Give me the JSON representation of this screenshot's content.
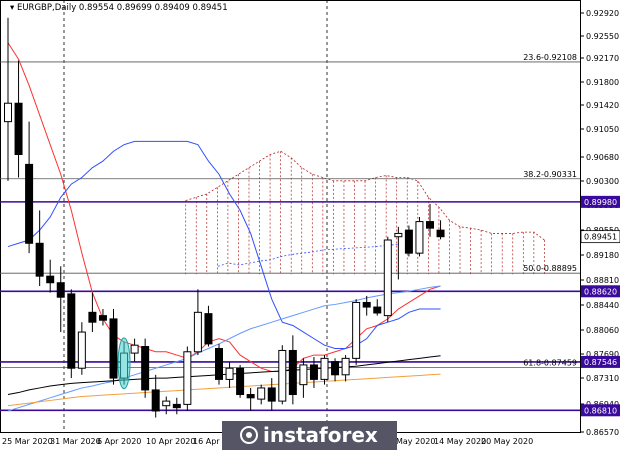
{
  "chart_data": {
    "type": "candlestick",
    "title": "EURGBP,Daily",
    "ohlc_header": "0.89554 0.89699 0.89409 0.89451",
    "y_axis": {
      "ylim": [
        0.8648,
        0.9305
      ],
      "ticks": [
        "0.92920",
        "0.92550",
        "0.92170",
        "0.91800",
        "0.91420",
        "0.91050",
        "0.90680",
        "0.90300",
        "0.89930",
        "0.89550",
        "0.89180",
        "0.88810",
        "0.88440",
        "0.88060",
        "0.87690",
        "0.87310",
        "0.86940",
        "0.86570"
      ]
    },
    "x_axis": {
      "ticks": [
        "25 Mar 2020",
        "31 Mar 2020",
        "6 Apr 2020",
        "10 Apr 2020",
        "16 Apr 2020",
        "",
        "May 2020",
        "14 May 2020",
        "20 May 2020"
      ]
    },
    "candles": [
      {
        "o": 0.912,
        "h": 0.9278,
        "l": 0.903,
        "c": 0.9148
      },
      {
        "o": 0.9148,
        "h": 0.9213,
        "l": 0.9035,
        "c": 0.907
      },
      {
        "o": 0.9055,
        "h": 0.912,
        "l": 0.892,
        "c": 0.8935
      },
      {
        "o": 0.8935,
        "h": 0.8985,
        "l": 0.887,
        "c": 0.8885
      },
      {
        "o": 0.8885,
        "h": 0.891,
        "l": 0.886,
        "c": 0.8875
      },
      {
        "o": 0.8875,
        "h": 0.89,
        "l": 0.88,
        "c": 0.8853
      },
      {
        "o": 0.8858,
        "h": 0.8865,
        "l": 0.873,
        "c": 0.8745
      },
      {
        "o": 0.8745,
        "h": 0.8815,
        "l": 0.8735,
        "c": 0.88
      },
      {
        "o": 0.883,
        "h": 0.886,
        "l": 0.88,
        "c": 0.8815
      },
      {
        "o": 0.8825,
        "h": 0.8835,
        "l": 0.881,
        "c": 0.8818
      },
      {
        "o": 0.882,
        "h": 0.8835,
        "l": 0.872,
        "c": 0.873
      },
      {
        "o": 0.873,
        "h": 0.8785,
        "l": 0.872,
        "c": 0.8768
      },
      {
        "o": 0.8768,
        "h": 0.879,
        "l": 0.8755,
        "c": 0.878
      },
      {
        "o": 0.8778,
        "h": 0.879,
        "l": 0.87,
        "c": 0.8712
      },
      {
        "o": 0.8712,
        "h": 0.8735,
        "l": 0.867,
        "c": 0.868
      },
      {
        "o": 0.8688,
        "h": 0.8702,
        "l": 0.8675,
        "c": 0.8695
      },
      {
        "o": 0.869,
        "h": 0.87,
        "l": 0.8675,
        "c": 0.8685
      },
      {
        "o": 0.869,
        "h": 0.8778,
        "l": 0.868,
        "c": 0.877
      },
      {
        "o": 0.877,
        "h": 0.8865,
        "l": 0.8765,
        "c": 0.883
      },
      {
        "o": 0.8828,
        "h": 0.884,
        "l": 0.8778,
        "c": 0.8782
      },
      {
        "o": 0.8775,
        "h": 0.8782,
        "l": 0.872,
        "c": 0.8728
      },
      {
        "o": 0.8728,
        "h": 0.8755,
        "l": 0.8715,
        "c": 0.8745
      },
      {
        "o": 0.8745,
        "h": 0.875,
        "l": 0.87,
        "c": 0.8705
      },
      {
        "o": 0.8705,
        "h": 0.8715,
        "l": 0.868,
        "c": 0.87
      },
      {
        "o": 0.8698,
        "h": 0.872,
        "l": 0.869,
        "c": 0.8715
      },
      {
        "o": 0.8715,
        "h": 0.873,
        "l": 0.868,
        "c": 0.8695
      },
      {
        "o": 0.8695,
        "h": 0.878,
        "l": 0.869,
        "c": 0.8772
      },
      {
        "o": 0.8772,
        "h": 0.8795,
        "l": 0.869,
        "c": 0.8705
      },
      {
        "o": 0.872,
        "h": 0.876,
        "l": 0.87,
        "c": 0.875
      },
      {
        "o": 0.875,
        "h": 0.8762,
        "l": 0.8715,
        "c": 0.8728
      },
      {
        "o": 0.8728,
        "h": 0.8765,
        "l": 0.872,
        "c": 0.876
      },
      {
        "o": 0.8755,
        "h": 0.876,
        "l": 0.8725,
        "c": 0.8735
      },
      {
        "o": 0.8735,
        "h": 0.8765,
        "l": 0.8725,
        "c": 0.876
      },
      {
        "o": 0.876,
        "h": 0.885,
        "l": 0.875,
        "c": 0.8845
      },
      {
        "o": 0.8845,
        "h": 0.8855,
        "l": 0.8825,
        "c": 0.8838
      },
      {
        "o": 0.8838,
        "h": 0.885,
        "l": 0.8825,
        "c": 0.8829
      },
      {
        "o": 0.8825,
        "h": 0.8945,
        "l": 0.8815,
        "c": 0.894
      },
      {
        "o": 0.8945,
        "h": 0.896,
        "l": 0.888,
        "c": 0.895
      },
      {
        "o": 0.8955,
        "h": 0.8962,
        "l": 0.8915,
        "c": 0.892
      },
      {
        "o": 0.892,
        "h": 0.8975,
        "l": 0.8915,
        "c": 0.8968
      },
      {
        "o": 0.8968,
        "h": 0.8995,
        "l": 0.8945,
        "c": 0.8958
      },
      {
        "o": 0.8955,
        "h": 0.897,
        "l": 0.8941,
        "c": 0.8945
      }
    ],
    "highlighted_candle_index": 11,
    "indicators": [
      {
        "name": "tenkan",
        "color": "#ff3030",
        "values": [
          0.924,
          0.9215,
          0.9175,
          0.913,
          0.9085,
          0.904,
          0.8985,
          0.892,
          0.886,
          0.882,
          0.8795,
          0.8785,
          0.878,
          0.8775,
          0.877,
          0.877,
          0.8765,
          0.876,
          0.877,
          0.8785,
          0.879,
          0.8785,
          0.8765,
          0.8755,
          0.8745,
          0.874,
          0.874,
          0.8745,
          0.876,
          0.8765,
          0.8765,
          0.877,
          0.8775,
          0.879,
          0.8805,
          0.881,
          0.882,
          0.8835,
          0.8845,
          0.8855,
          0.8865,
          0.887
        ]
      },
      {
        "name": "kijun",
        "color": "#3050ff",
        "values": [
          0.893,
          0.8935,
          0.894,
          0.8955,
          0.8975,
          0.9005,
          0.9025,
          0.9035,
          0.905,
          0.906,
          0.9075,
          0.9085,
          0.909,
          0.909,
          0.909,
          0.909,
          0.909,
          0.909,
          0.9085,
          0.906,
          0.904,
          0.901,
          0.8985,
          0.895,
          0.89,
          0.885,
          0.8815,
          0.881,
          0.88,
          0.879,
          0.878,
          0.8775,
          0.8775,
          0.878,
          0.879,
          0.881,
          0.8815,
          0.882,
          0.883,
          0.8835,
          0.8835,
          0.8835
        ]
      },
      {
        "name": "sma_slow",
        "color": "#6699ff",
        "values": [
          0.868,
          0.8685,
          0.869,
          0.8695,
          0.87,
          0.8705,
          0.871,
          0.8715,
          0.8718,
          0.8722,
          0.8725,
          0.873,
          0.8735,
          0.874,
          0.8745,
          0.875,
          0.8755,
          0.876,
          0.8768,
          0.8775,
          0.8782,
          0.879,
          0.8798,
          0.8805,
          0.881,
          0.8815,
          0.882,
          0.8825,
          0.883,
          0.8835,
          0.884,
          0.8842,
          0.8845,
          0.8848,
          0.8852,
          0.8855,
          0.8858,
          0.886,
          0.8862,
          0.8865,
          0.8868,
          0.887
        ]
      },
      {
        "name": "ma_black",
        "color": "#000000",
        "values": [
          0.8705,
          0.8708,
          0.8712,
          0.8715,
          0.8718,
          0.872,
          0.8722,
          0.8723,
          0.8724,
          0.8725,
          0.8726,
          0.8727,
          0.8728,
          0.8729,
          0.873,
          0.873,
          0.8731,
          0.8732,
          0.8733,
          0.8734,
          0.8735,
          0.8736,
          0.8737,
          0.8738,
          0.8739,
          0.874,
          0.8741,
          0.8742,
          0.8743,
          0.8744,
          0.8745,
          0.8746,
          0.8747,
          0.8748,
          0.875,
          0.8752,
          0.8754,
          0.8756,
          0.8758,
          0.876,
          0.8762,
          0.8764
        ]
      },
      {
        "name": "ma_orange",
        "color": "#f0a040",
        "values": [
          0.8688,
          0.869,
          0.8692,
          0.8694,
          0.8696,
          0.8698,
          0.87,
          0.8702,
          0.8703,
          0.8704,
          0.8705,
          0.8706,
          0.8707,
          0.8708,
          0.8709,
          0.871,
          0.8711,
          0.8712,
          0.8713,
          0.8714,
          0.8715,
          0.8716,
          0.8717,
          0.8718,
          0.8719,
          0.872,
          0.8721,
          0.8722,
          0.8723,
          0.8724,
          0.8725,
          0.8726,
          0.8727,
          0.8728,
          0.8729,
          0.873,
          0.8731,
          0.8732,
          0.8733,
          0.8734,
          0.8735,
          0.8736
        ]
      }
    ],
    "cloud_upper": [
      0.9,
      0.9005,
      0.901,
      0.902,
      0.903,
      0.904,
      0.905,
      0.906,
      0.907,
      0.9075,
      0.9065,
      0.905,
      0.904,
      0.9035,
      0.903,
      0.903,
      0.903,
      0.903,
      0.9035,
      0.9038,
      0.9035,
      0.9035,
      0.903,
      0.9005,
      0.899,
      0.897,
      0.896,
      0.8958,
      0.8955,
      0.895,
      0.895,
      0.895,
      0.8952,
      0.8952,
      0.894
    ],
    "cloud_lower": [
      0.8888,
      0.8888,
      0.8888,
      0.8888,
      0.8888,
      0.8888,
      0.8888,
      0.8888,
      0.8888,
      0.8888,
      0.8888,
      0.8888,
      0.8888,
      0.8888,
      0.8888,
      0.8888,
      0.8888,
      0.8888,
      0.8888,
      0.8888,
      0.8888,
      0.8888,
      0.8888,
      0.8888,
      0.8888,
      0.8888,
      0.8888,
      0.8888,
      0.8888,
      0.8888,
      0.8888,
      0.8888,
      0.8888,
      0.8888,
      0.8888
    ],
    "cloud_start_index": 14,
    "chikou": {
      "color": "#3050ff",
      "values": [
        0.893,
        0.8935,
        0.8932,
        0.8935,
        0.8938,
        0.894,
        0.8945,
        0.8948,
        0.895,
        0.8952,
        0.8955,
        0.8956,
        0.8957,
        0.8958,
        0.8959,
        0.896,
        0.8962,
        0.8963
      ]
    },
    "horizontal_levels": [
      {
        "price": 0.8998,
        "label": "0.89980",
        "color": "#3a0a9c",
        "box": true
      },
      {
        "price": 0.8862,
        "label": "0.88620",
        "color": "#3a0a9c",
        "box": true
      },
      {
        "price": 0.87546,
        "label": "0.87546",
        "color": "#3a0a9c",
        "box": true
      },
      {
        "price": 0.8681,
        "label": "0.86810",
        "color": "#3a0a9c",
        "box": true
      },
      {
        "price": 0.92108,
        "label": "23.6-0.92108",
        "color": "#555555",
        "box": false,
        "fib": true
      },
      {
        "price": 0.90331,
        "label": "38.2-0.90331",
        "color": "#555555",
        "box": false,
        "fib": true
      },
      {
        "price": 0.88895,
        "label": "50.0-0.88895",
        "color": "#555555",
        "box": false,
        "fib": true
      },
      {
        "price": 0.87459,
        "label": "61.8-0.87459",
        "color": "#555555",
        "box": false,
        "fib": true
      }
    ],
    "current_price": {
      "value": "0.89451"
    },
    "watermark_text": "instaforex"
  }
}
